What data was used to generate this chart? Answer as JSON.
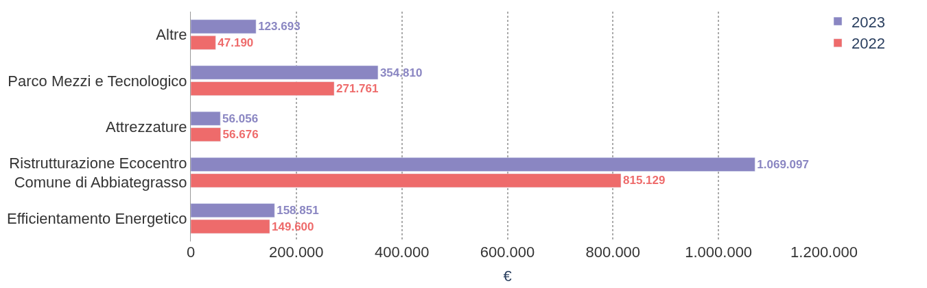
{
  "chart_data": {
    "type": "bar",
    "orientation": "horizontal",
    "xlabel": "€",
    "categories": [
      "Altre",
      "Parco Mezzi e Tecnologico",
      "Attrezzature",
      "Ristrutturazione Ecocentro Comune di Abbiategrasso",
      "Efficientamento Energetico"
    ],
    "series": [
      {
        "name": "2023",
        "color": "#8a86c2",
        "values": [
          123693,
          354810,
          56056,
          1069097,
          158851
        ],
        "value_labels": [
          "123.693",
          "354.810",
          "56.056",
          "1.069.097",
          "158.851"
        ]
      },
      {
        "name": "2022",
        "color": "#ee6b6b",
        "values": [
          47190,
          271761,
          56676,
          815129,
          149600
        ],
        "value_labels": [
          "47.190",
          "271.761",
          "56.676",
          "815.129",
          "149.600"
        ]
      }
    ],
    "xlim": [
      0,
      1200000
    ],
    "xticks": [
      0,
      {
        "value": 200000,
        "label": "200.000"
      },
      {
        "value": 400000,
        "label": "400.000"
      },
      {
        "value": 600000,
        "label": "600.000"
      },
      {
        "value": 800000,
        "label": "800.000"
      },
      {
        "value": 1000000,
        "label": "1.000.000"
      },
      {
        "value": 1200000,
        "label": "1.200.000"
      }
    ],
    "grid": "x",
    "legend": "top right"
  }
}
